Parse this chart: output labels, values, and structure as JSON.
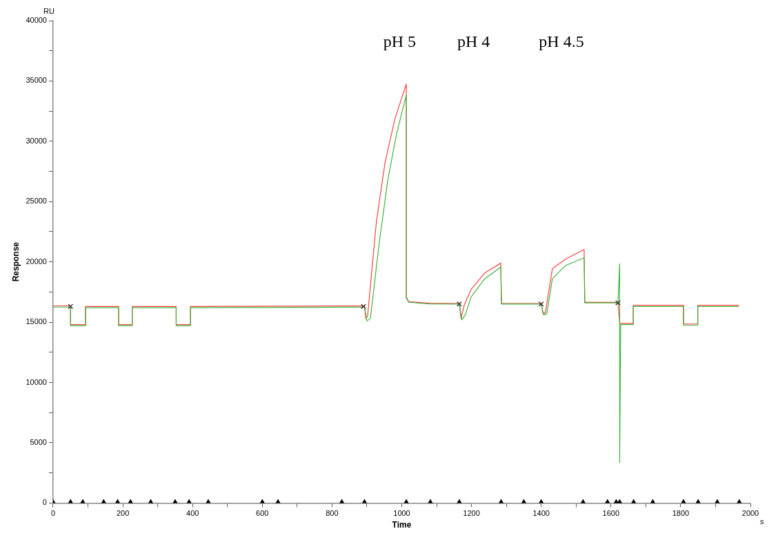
{
  "chart_data": {
    "type": "line",
    "xlabel": "Time",
    "ylabel": "Response",
    "xlim": [
      0,
      2000
    ],
    "ylim": [
      0,
      40000
    ],
    "xticks": [
      0,
      {
        "value": 100,
        "label": null
      },
      200,
      {
        "value": 300,
        "label": null
      },
      400,
      {
        "value": 500,
        "label": null
      },
      600,
      {
        "value": 700,
        "label": null
      },
      800,
      {
        "value": 900,
        "label": null
      },
      1000,
      {
        "value": 1100,
        "label": null
      },
      1200,
      {
        "value": 1300,
        "label": null
      },
      1400,
      {
        "value": 1500,
        "label": null
      },
      1600,
      {
        "value": 1700,
        "label": null
      },
      1800,
      {
        "value": 1900,
        "label": null
      },
      2000
    ],
    "yticks": [
      0,
      {
        "value": 2500,
        "label": null
      },
      5000,
      {
        "value": 7500,
        "label": null
      },
      10000,
      {
        "value": 12500,
        "label": null
      },
      15000,
      {
        "value": 17500,
        "label": null
      },
      20000,
      {
        "value": 22500,
        "label": null
      },
      25000,
      {
        "value": 27500,
        "label": null
      },
      30000,
      {
        "value": 32500,
        "label": null
      },
      35000,
      {
        "value": 37500,
        "label": null
      },
      40000
    ],
    "grid": false,
    "legend": false,
    "series": [
      {
        "color": "#ff4040",
        "marker": "none",
        "x": [
          0,
          50,
          50,
          93,
          93,
          188,
          188,
          227,
          227,
          353,
          353,
          394,
          394,
          893,
          897,
          902,
          927,
          952,
          980,
          1013,
          1013,
          1020,
          1077,
          1165,
          1170,
          1179,
          1199,
          1238,
          1284,
          1286,
          1400,
          1405,
          1412,
          1432,
          1470,
          1523,
          1525,
          1620,
          1625,
          1664,
          1664,
          1808,
          1808,
          1849,
          1849,
          1967
        ],
        "values": [
          16350,
          16350,
          14800,
          14800,
          16300,
          16300,
          14800,
          14800,
          16300,
          16300,
          14800,
          14800,
          16300,
          16350,
          15300,
          15500,
          23260,
          28230,
          31830,
          34740,
          17100,
          16700,
          16570,
          16550,
          15300,
          16400,
          17710,
          19080,
          19890,
          16550,
          16550,
          15700,
          15800,
          19430,
          20230,
          21030,
          16650,
          16650,
          14900,
          14900,
          16400,
          16400,
          14850,
          14850,
          16400,
          16400
        ]
      },
      {
        "color": "#3cb43c",
        "marker": "none",
        "x": [
          0,
          50,
          50,
          93,
          93,
          188,
          188,
          227,
          227,
          353,
          353,
          394,
          394,
          893,
          900,
          910,
          935,
          960,
          985,
          1013,
          1013,
          1020,
          1077,
          1165,
          1172,
          1182,
          1199,
          1238,
          1284,
          1286,
          1400,
          1407,
          1416,
          1432,
          1470,
          1523,
          1525,
          1620,
          1625,
          1625,
          1628,
          1664,
          1664,
          1808,
          1808,
          1849,
          1849,
          1967
        ],
        "values": [
          16250,
          16250,
          14700,
          14700,
          16200,
          16200,
          14700,
          14700,
          16200,
          16200,
          14700,
          14700,
          16200,
          16250,
          15100,
          15300,
          21500,
          26800,
          30600,
          33830,
          17000,
          16650,
          16520,
          16500,
          15200,
          15600,
          17100,
          18600,
          19570,
          16500,
          16500,
          15600,
          15700,
          18600,
          19700,
          20340,
          16600,
          16600,
          19830,
          3370,
          14800,
          14800,
          16300,
          16300,
          14750,
          14750,
          16300,
          16300
        ]
      },
      {
        "type": "scatter",
        "color": "#000000",
        "marker": "triangle",
        "x": [
          0,
          50,
          85,
          145,
          185,
          222,
          280,
          350,
          390,
          445,
          600,
          645,
          828,
          893,
          1013,
          1082,
          1165,
          1285,
          1350,
          1400,
          1520,
          1590,
          1615,
          1625,
          1665,
          1720,
          1808,
          1850,
          1905,
          1968
        ],
        "values": [
          0,
          0,
          0,
          0,
          0,
          0,
          0,
          0,
          0,
          0,
          0,
          0,
          0,
          0,
          0,
          0,
          0,
          0,
          0,
          0,
          0,
          0,
          0,
          0,
          0,
          0,
          0,
          0,
          0,
          0
        ]
      },
      {
        "type": "scatter",
        "color": "#333333",
        "marker": "cross",
        "x": [
          50,
          890,
          1165,
          1400,
          1620
        ],
        "values": [
          16300,
          16300,
          16500,
          16500,
          16600
        ]
      }
    ],
    "annotations": [
      "pH 5",
      "pH 4",
      "pH 4.5",
      "RU",
      "s"
    ]
  }
}
